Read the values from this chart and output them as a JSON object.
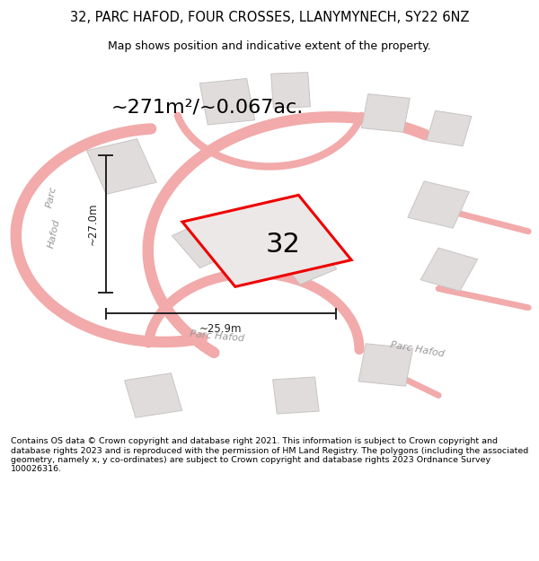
{
  "title": "32, PARC HAFOD, FOUR CROSSES, LLANYMYNECH, SY22 6NZ",
  "subtitle": "Map shows position and indicative extent of the property.",
  "area_text": "~271m²/~0.067ac.",
  "plot_number": "32",
  "dim_vertical": "~27.0m",
  "dim_horizontal": "~25.9m",
  "footer": "Contains OS data © Crown copyright and database right 2021. This information is subject to Crown copyright and database rights 2023 and is reproduced with the permission of HM Land Registry. The polygons (including the associated geometry, namely x, y co-ordinates) are subject to Crown copyright and database rights 2023 Ordnance Survey 100026316.",
  "bg_color": "#ffffff",
  "map_bg": "#f5f2f2",
  "road_color": "#f2aaaa",
  "building_color": "#e0dcdc",
  "building_edge": "#c8c4c4",
  "plot_fill": "#ede8e8",
  "plot_edge": "#ee0000",
  "dim_color": "#222222",
  "street_label_color": "#999999",
  "title_color": "#000000",
  "footer_color": "#000000",
  "title_fontsize": 10.5,
  "subtitle_fontsize": 9.0,
  "area_fontsize": 16,
  "plot_label_fontsize": 22,
  "dim_fontsize": 8.5,
  "street_fontsize": 8.0,
  "footer_fontsize": 6.8
}
